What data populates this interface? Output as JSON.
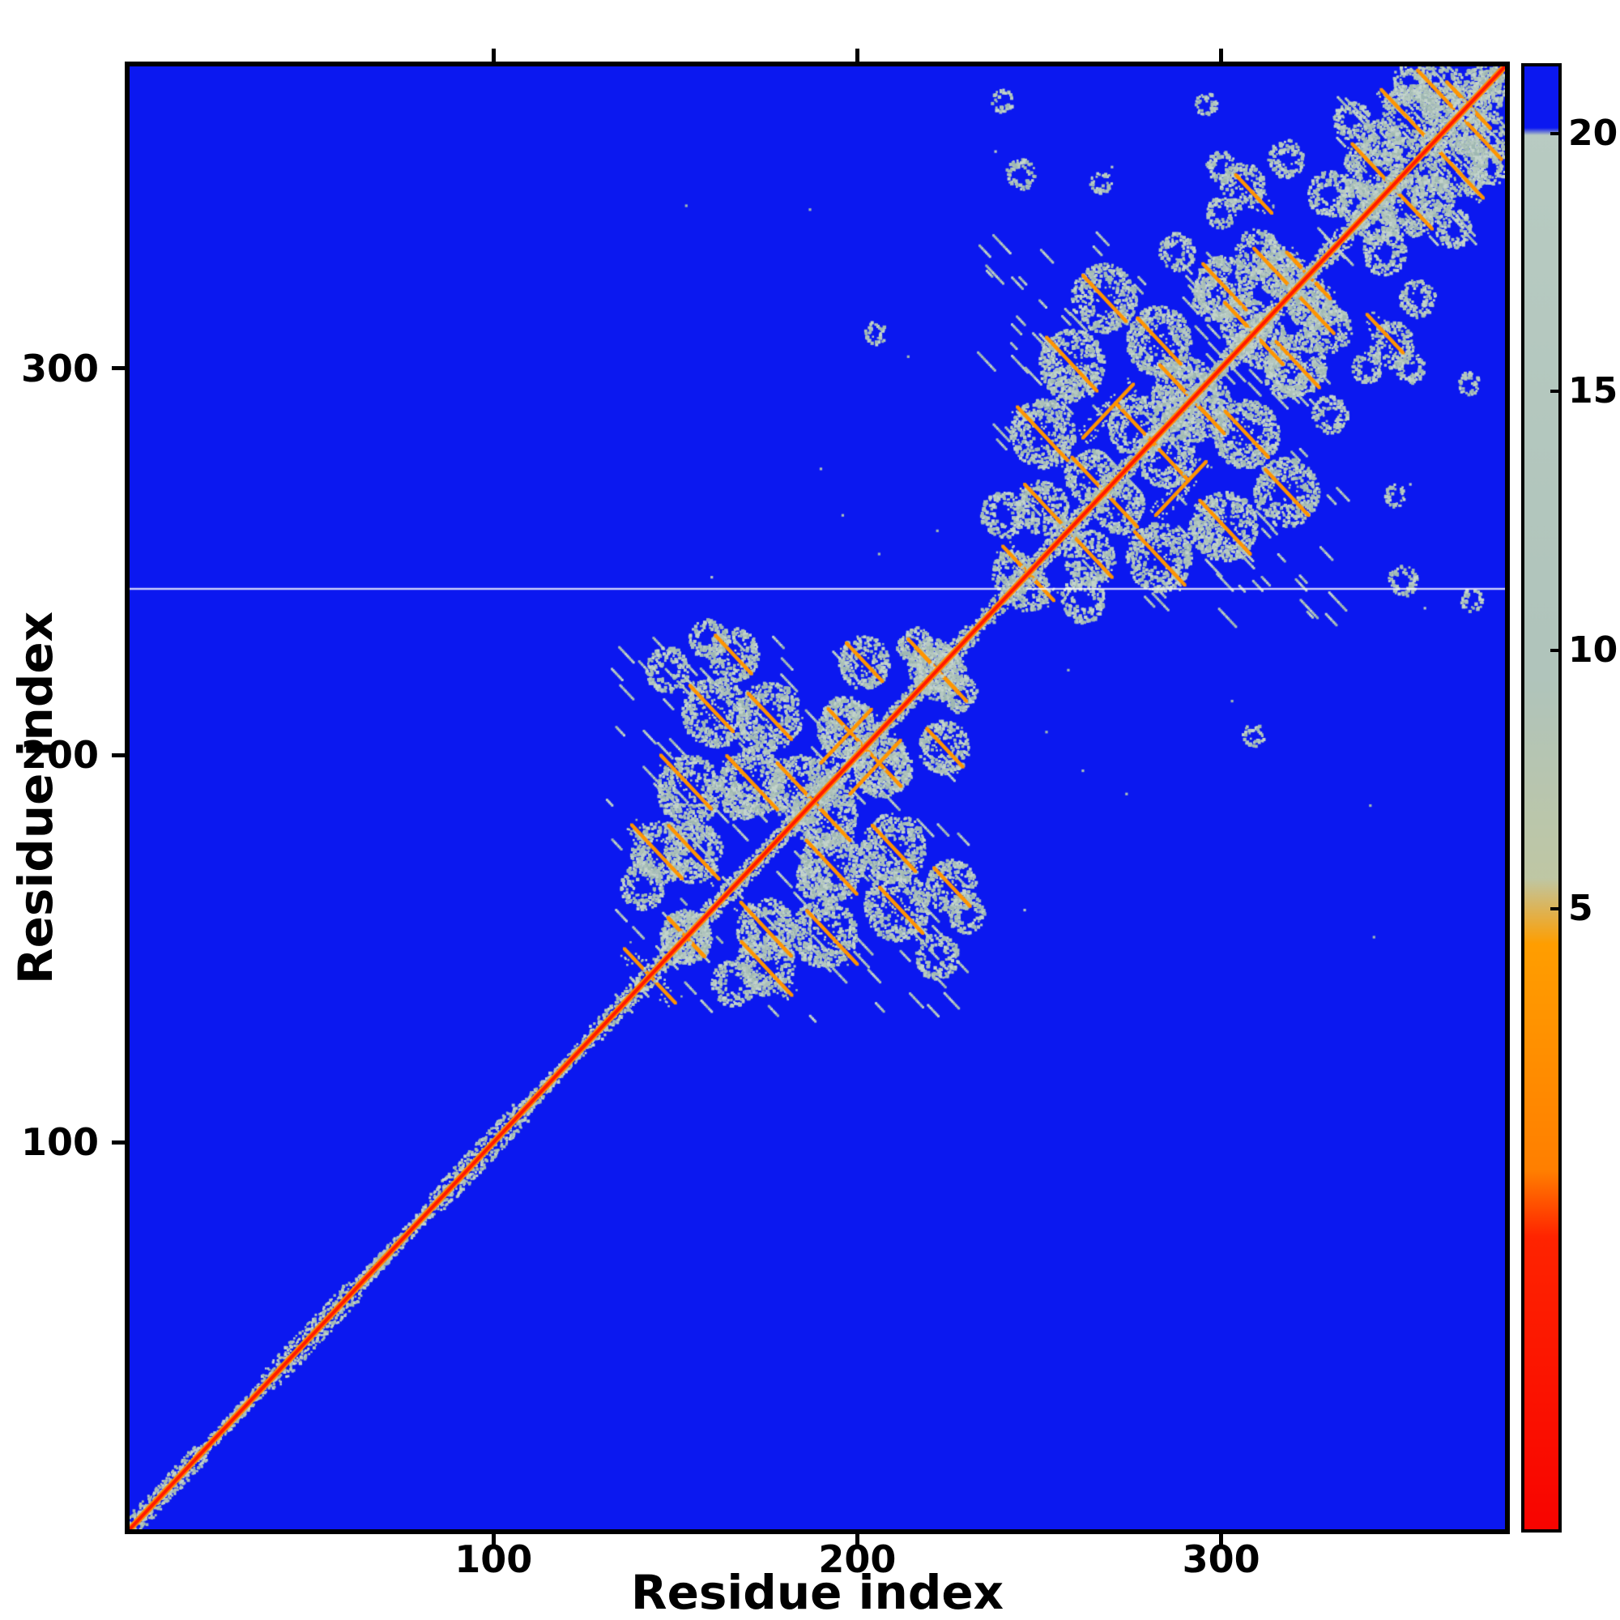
{
  "chart_data": {
    "type": "heatmap",
    "title": "",
    "xlabel": "Residue index",
    "ylabel": "Residue index",
    "x_range": [
      0,
      378
    ],
    "y_range": [
      0,
      378
    ],
    "x_ticks": [
      100,
      200,
      300
    ],
    "y_ticks": [
      100,
      200,
      300
    ],
    "grid": false,
    "legend": null,
    "colors": {
      "background_far": "#0b18f0",
      "contact_gray": [
        "#b6c9c0",
        "#abc0b8",
        "#c3d4cb",
        "#9fb8b2"
      ],
      "streak_orange": "#ff9500",
      "diagonal_orange": "#ff8c00",
      "diagonal_red": "#ff1a00",
      "missing_row_white": "rgba(255,255,255,0.8)"
    },
    "colorbar": {
      "position": "right",
      "tick_values": [
        20,
        15,
        10,
        5
      ],
      "ticks": [
        {
          "label": "20",
          "f": 0.046
        },
        {
          "label": "15",
          "f": 0.222
        },
        {
          "label": "10",
          "f": 0.399
        },
        {
          "label": "5",
          "f": 0.576
        }
      ],
      "stops": [
        {
          "f": 0.0,
          "c": "#0b18f0"
        },
        {
          "f": 0.042,
          "c": "#0b18f0"
        },
        {
          "f": 0.047,
          "c": "#b8cbc2"
        },
        {
          "f": 0.42,
          "c": "#b0c4bb"
        },
        {
          "f": 0.555,
          "c": "#bfc7a4"
        },
        {
          "f": 0.6,
          "c": "#ff9e00"
        },
        {
          "f": 0.755,
          "c": "#ff7f00"
        },
        {
          "f": 0.8,
          "c": "#ff2400"
        },
        {
          "f": 1.0,
          "c": "#f80400"
        }
      ]
    },
    "features": {
      "n": 378,
      "missing_row": 243,
      "diagonal": [
        0,
        378
      ],
      "diagonal_fringe": [
        [
          0,
          20,
          2.6
        ],
        [
          20,
          38,
          1.5
        ],
        [
          38,
          62,
          3.0
        ],
        [
          62,
          82,
          1.7
        ],
        [
          82,
          108,
          3.0
        ],
        [
          108,
          128,
          1.7
        ],
        [
          128,
          232,
          2.4
        ],
        [
          232,
          236,
          1.6
        ],
        [
          236,
          332,
          2.4
        ],
        [
          332,
          378,
          2.8
        ]
      ],
      "clusters": [
        [
          130,
          130,
          232,
          232,
          60
        ],
        [
          236,
          236,
          332,
          332,
          60
        ],
        [
          330,
          330,
          378,
          378,
          30
        ]
      ],
      "streaks": [
        [
          138,
          182,
          152,
          168
        ],
        [
          146,
          200,
          160,
          186
        ],
        [
          154,
          218,
          166,
          206
        ],
        [
          161,
          231,
          171,
          221
        ],
        [
          170,
          216,
          182,
          204
        ],
        [
          178,
          198,
          192,
          184
        ],
        [
          186,
          178,
          200,
          164
        ],
        [
          168,
          162,
          182,
          148
        ],
        [
          148,
          158,
          158,
          148
        ],
        [
          192,
          212,
          202,
          202
        ],
        [
          197,
          229,
          207,
          219
        ],
        [
          214,
          230,
          228,
          216
        ],
        [
          190,
          198,
          204,
          212
        ],
        [
          136,
          150,
          144,
          142
        ],
        [
          244,
          290,
          258,
          276
        ],
        [
          252,
          308,
          266,
          294
        ],
        [
          262,
          324,
          274,
          312
        ],
        [
          277,
          313,
          289,
          301
        ],
        [
          287,
          297,
          301,
          283
        ],
        [
          295,
          327,
          307,
          315
        ],
        [
          246,
          270,
          257,
          259
        ],
        [
          271,
          291,
          283,
          279
        ],
        [
          259,
          277,
          269,
          267
        ],
        [
          301,
          317,
          313,
          305
        ],
        [
          309,
          331,
          319,
          321
        ],
        [
          240,
          254,
          250,
          244
        ],
        [
          262,
          282,
          276,
          296
        ],
        [
          318,
          330,
          328,
          320
        ],
        [
          336,
          358,
          348,
          346
        ],
        [
          344,
          372,
          356,
          360
        ],
        [
          354,
          377,
          364,
          367
        ],
        [
          362,
          374,
          372,
          364
        ],
        [
          304,
          350,
          314,
          340
        ]
      ],
      "blobs": [
        [
          146,
          175,
          8
        ],
        [
          154,
          191,
          9
        ],
        [
          161,
          211,
          9
        ],
        [
          166,
          226,
          7
        ],
        [
          176,
          210,
          9
        ],
        [
          185,
          191,
          9
        ],
        [
          193,
          171,
          9
        ],
        [
          175,
          155,
          8
        ],
        [
          153,
          153,
          7
        ],
        [
          197,
          207,
          8
        ],
        [
          202,
          224,
          7
        ],
        [
          221,
          223,
          7
        ],
        [
          228,
          216,
          5
        ],
        [
          141,
          166,
          6
        ],
        [
          148,
          222,
          6
        ],
        [
          230,
          159,
          5
        ],
        [
          210,
          196,
          5
        ],
        [
          168,
          188,
          5
        ],
        [
          251,
          283,
          9
        ],
        [
          259,
          301,
          9
        ],
        [
          268,
          318,
          9
        ],
        [
          283,
          307,
          9
        ],
        [
          294,
          290,
          9
        ],
        [
          301,
          321,
          8
        ],
        [
          251,
          264,
          7
        ],
        [
          277,
          285,
          8
        ],
        [
          264,
          272,
          7
        ],
        [
          307,
          311,
          7
        ],
        [
          314,
          326,
          6
        ],
        [
          324,
          317,
          6
        ],
        [
          243,
          247,
          6
        ],
        [
          318,
          298,
          6
        ],
        [
          330,
          310,
          6
        ],
        [
          240,
          262,
          6
        ],
        [
          288,
          330,
          5
        ],
        [
          296,
          258,
          5
        ],
        [
          342,
          352,
          8
        ],
        [
          352,
          365,
          8
        ],
        [
          360,
          373,
          7
        ],
        [
          368,
          361,
          6
        ],
        [
          342,
          338,
          6
        ],
        [
          374,
          352,
          5
        ],
        [
          358,
          344,
          6
        ],
        [
          372,
          374,
          5
        ],
        [
          336,
          364,
          5
        ],
        [
          306,
          347,
          6
        ],
        [
          318,
          354,
          5
        ],
        [
          330,
          345,
          6
        ],
        [
          300,
          340,
          4
        ],
        [
          240,
          369,
          3
        ],
        [
          296,
          368,
          3
        ],
        [
          352,
          300,
          4
        ],
        [
          348,
          267,
          3
        ],
        [
          350,
          245,
          4
        ],
        [
          205,
          309,
          3
        ]
      ],
      "specks": [
        [
          190,
          274
        ],
        [
          187,
          341
        ],
        [
          153,
          342
        ],
        [
          214,
          303
        ],
        [
          222,
          258
        ],
        [
          196,
          262
        ],
        [
          160,
          246
        ],
        [
          238,
          356
        ],
        [
          270,
          352
        ],
        [
          206,
          252
        ]
      ]
    }
  }
}
